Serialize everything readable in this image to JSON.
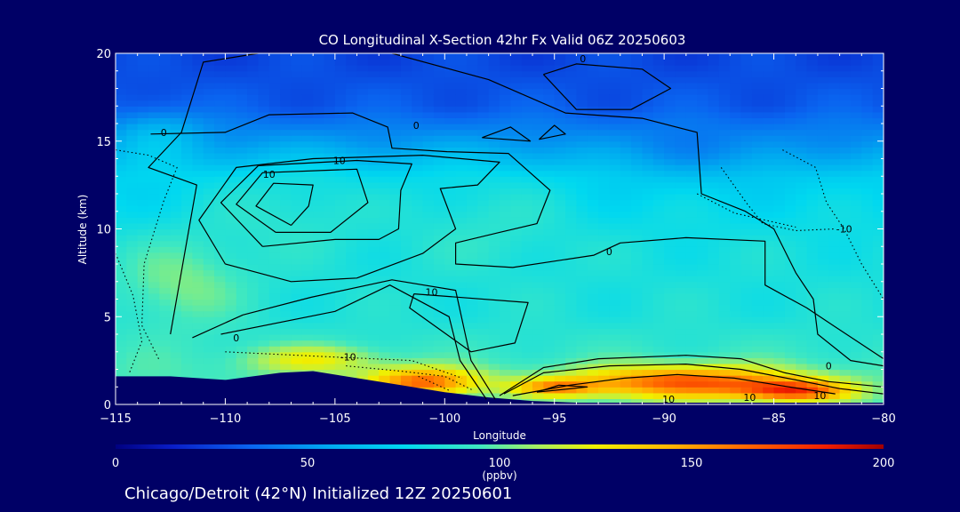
{
  "chart_data": {
    "type": "heatmap",
    "title": "CO Longitudinal X-Section 42hr  Fx Valid 06Z 20250603",
    "xlabel": "Longitude",
    "ylabel": "Altitude (km)",
    "xlim": [
      -115,
      -80
    ],
    "ylim": [
      0,
      20
    ],
    "x_ticks": [
      "−115",
      "−110",
      "−105",
      "−100",
      "−95",
      "−90",
      "−85",
      "−80"
    ],
    "y_ticks": [
      "0",
      "5",
      "10",
      "15",
      "20"
    ],
    "colorbar": {
      "ticks": [
        "0",
        "50",
        "100",
        "150",
        "200"
      ],
      "range": [
        0,
        200
      ],
      "unit_label": "(ppbv)",
      "stops": [
        {
          "v": 0,
          "c": "#000080"
        },
        {
          "v": 15,
          "c": "#0a1ec8"
        },
        {
          "v": 35,
          "c": "#0a64f0"
        },
        {
          "v": 55,
          "c": "#00a8f0"
        },
        {
          "v": 75,
          "c": "#00d8f0"
        },
        {
          "v": 95,
          "c": "#40e8c0"
        },
        {
          "v": 110,
          "c": "#a8f060"
        },
        {
          "v": 125,
          "c": "#f0f000"
        },
        {
          "v": 145,
          "c": "#ffb400"
        },
        {
          "v": 165,
          "c": "#ff6400"
        },
        {
          "v": 185,
          "c": "#f01e00"
        },
        {
          "v": 200,
          "c": "#a00000"
        }
      ]
    },
    "field_profile": [
      {
        "alt": 0,
        "co": 95
      },
      {
        "alt": 2,
        "co": 95
      },
      {
        "alt": 5,
        "co": 85
      },
      {
        "alt": 9,
        "co": 82
      },
      {
        "alt": 13,
        "co": 72
      },
      {
        "alt": 15,
        "co": 50
      },
      {
        "alt": 17,
        "co": 32
      },
      {
        "alt": 20,
        "co": 26
      }
    ],
    "field_anomalies": [
      {
        "lon": -107,
        "alt": 11.5,
        "dlon": 4,
        "dalt": 2.5,
        "dco": 12
      },
      {
        "lon": -98,
        "alt": 11,
        "dlon": 4,
        "dalt": 3,
        "dco": 10
      },
      {
        "lon": -112,
        "alt": 7,
        "dlon": 3,
        "dalt": 2.5,
        "dco": 20
      },
      {
        "lon": -113,
        "alt": 15.5,
        "dlon": 2,
        "dalt": 1.5,
        "dco": 18
      },
      {
        "lon": -88,
        "alt": 14,
        "dlon": 5,
        "dalt": 1.5,
        "dco": -10
      },
      {
        "lon": -101,
        "alt": 1.3,
        "dlon": 2.5,
        "dalt": 0.8,
        "dco": 70
      },
      {
        "lon": -89,
        "alt": 1.3,
        "dlon": 5,
        "dalt": 0.9,
        "dco": 75
      },
      {
        "lon": -84,
        "alt": 0.8,
        "dlon": 2.5,
        "dalt": 0.6,
        "dco": 70
      },
      {
        "lon": -95,
        "alt": 1.0,
        "dlon": 2,
        "dalt": 0.5,
        "dco": 50
      },
      {
        "lon": -106,
        "alt": 2.6,
        "dlon": 3,
        "dalt": 0.8,
        "dco": 30
      }
    ],
    "terrain": [
      [
        -115,
        1.6
      ],
      [
        -112.5,
        1.6
      ],
      [
        -110,
        1.4
      ],
      [
        -107.5,
        1.8
      ],
      [
        -106,
        1.9
      ],
      [
        -104,
        1.5
      ],
      [
        -102,
        1.1
      ],
      [
        -100,
        0.7
      ],
      [
        -98,
        0.4
      ],
      [
        -96,
        0.2
      ],
      [
        -94,
        0.1
      ],
      [
        -90,
        0.1
      ],
      [
        -85,
        0.1
      ],
      [
        -80,
        0.1
      ]
    ],
    "contours": [
      {
        "style": "solid",
        "points": [
          [
            -107,
            10.2
          ],
          [
            -108.6,
            11.3
          ],
          [
            -107.8,
            12.6
          ],
          [
            -106,
            12.5
          ],
          [
            -106.2,
            11.3
          ],
          [
            -107,
            10.2
          ]
        ]
      },
      {
        "style": "solid",
        "points": [
          [
            -107.7,
            9.8
          ],
          [
            -109.5,
            11.4
          ],
          [
            -108.3,
            13.2
          ],
          [
            -104,
            13.4
          ],
          [
            -103.5,
            11.5
          ],
          [
            -105.2,
            9.8
          ],
          [
            -107.7,
            9.8
          ]
        ]
      },
      {
        "style": "solid",
        "points": [
          [
            -108.3,
            9
          ],
          [
            -110.2,
            11.5
          ],
          [
            -108.5,
            13.6
          ],
          [
            -104,
            13.9
          ],
          [
            -101.5,
            13.7
          ],
          [
            -102,
            12.2
          ],
          [
            -102.1,
            10
          ],
          [
            -103,
            9.4
          ],
          [
            -105,
            9.4
          ],
          [
            -108.3,
            9
          ]
        ]
      },
      {
        "style": "solid",
        "points": [
          [
            -110,
            8
          ],
          [
            -111.2,
            10.5
          ],
          [
            -109.5,
            13.5
          ],
          [
            -106,
            14
          ],
          [
            -101,
            14.2
          ],
          [
            -97.5,
            13.8
          ],
          [
            -98.5,
            12.5
          ],
          [
            -100.2,
            12.3
          ],
          [
            -99.5,
            10
          ],
          [
            -101,
            8.6
          ],
          [
            -104,
            7.2
          ],
          [
            -107,
            7
          ],
          [
            -110,
            8
          ]
        ]
      },
      {
        "style": "solid",
        "points": [
          [
            -101.4,
            6.3
          ],
          [
            -96.2,
            5.8
          ],
          [
            -96.8,
            3.5
          ],
          [
            -98.8,
            3.0
          ],
          [
            -101.6,
            5.5
          ],
          [
            -101.4,
            6.3
          ]
        ]
      },
      {
        "style": "solid",
        "points": [
          [
            -110.2,
            4.0
          ],
          [
            -105,
            5.3
          ],
          [
            -102.5,
            6.8
          ],
          [
            -99.8,
            5
          ],
          [
            -99.3,
            2.5
          ],
          [
            -98.1,
            0.3
          ]
        ]
      },
      {
        "style": "solid",
        "points": [
          [
            -111.5,
            3.8
          ],
          [
            -109.2,
            5.1
          ],
          [
            -106.1,
            6.1
          ],
          [
            -102.4,
            7.1
          ],
          [
            -99.5,
            6.5
          ],
          [
            -98.8,
            2.5
          ],
          [
            -97.7,
            0.3
          ]
        ]
      },
      {
        "style": "solid",
        "points": [
          [
            -113.4,
            15.4
          ],
          [
            -110,
            15.5
          ],
          [
            -108,
            16.5
          ],
          [
            -104.2,
            16.6
          ],
          [
            -102.6,
            15.8
          ],
          [
            -102.4,
            14.6
          ],
          [
            -99.9,
            14.4
          ],
          [
            -97.1,
            14.3
          ],
          [
            -95.2,
            12.2
          ],
          [
            -95.8,
            10.3
          ],
          [
            -97.5,
            9.8
          ],
          [
            -99.5,
            9.2
          ],
          [
            -99.5,
            8.0
          ],
          [
            -96.9,
            7.8
          ],
          [
            -93.2,
            8.5
          ],
          [
            -92,
            9.2
          ],
          [
            -89,
            9.5
          ],
          [
            -85.4,
            9.3
          ],
          [
            -85.4,
            6.8
          ],
          [
            -83.5,
            5.5
          ],
          [
            -82.3,
            4.5
          ],
          [
            -80,
            2.6
          ]
        ]
      },
      {
        "style": "solid",
        "points": [
          [
            -112.5,
            4.0
          ],
          [
            -111.3,
            12.5
          ],
          [
            -113.5,
            13.5
          ],
          [
            -112,
            15.5
          ],
          [
            -111,
            19.5
          ],
          [
            -108.5,
            20
          ]
        ]
      },
      {
        "style": "solid",
        "points": [
          [
            -102.4,
            20
          ],
          [
            -98,
            18.5
          ],
          [
            -94.5,
            16.6
          ],
          [
            -91,
            16.3
          ],
          [
            -88.5,
            15.5
          ],
          [
            -88.3,
            12
          ],
          [
            -86.3,
            11
          ],
          [
            -85,
            10
          ],
          [
            -84,
            7.5
          ],
          [
            -83.2,
            6
          ],
          [
            -83,
            4
          ],
          [
            -81.5,
            2.5
          ],
          [
            -80,
            2.2
          ]
        ]
      },
      {
        "style": "solid",
        "points": [
          [
            -98.3,
            15.2
          ],
          [
            -96.1,
            15
          ],
          [
            -97,
            15.8
          ],
          [
            -98.3,
            15.2
          ]
        ]
      },
      {
        "style": "solid",
        "points": [
          [
            -95.7,
            15.1
          ],
          [
            -94.5,
            15.4
          ],
          [
            -95,
            15.9
          ],
          [
            -95.7,
            15.1
          ]
        ]
      },
      {
        "style": "solid",
        "points": [
          [
            -95.5,
            18.8
          ],
          [
            -94,
            19.4
          ],
          [
            -91,
            19.1
          ],
          [
            -89.7,
            18
          ],
          [
            -91.5,
            16.8
          ],
          [
            -94,
            16.8
          ],
          [
            -95.5,
            18.8
          ]
        ]
      },
      {
        "style": "solid",
        "points": [
          [
            -96.9,
            0.5
          ],
          [
            -94.3,
            1.1
          ],
          [
            -91.8,
            1.5
          ],
          [
            -89.4,
            1.7
          ],
          [
            -86.8,
            1.5
          ],
          [
            -84.3,
            1.0
          ],
          [
            -82.2,
            0.6
          ]
        ]
      },
      {
        "style": "solid",
        "points": [
          [
            -97.3,
            0.6
          ],
          [
            -95.5,
            1.8
          ],
          [
            -92.5,
            2.2
          ],
          [
            -89,
            2.3
          ],
          [
            -86.5,
            2.0
          ],
          [
            -84,
            1.4
          ],
          [
            -82,
            0.9
          ],
          [
            -80,
            0.6
          ]
        ]
      },
      {
        "style": "solid",
        "points": [
          [
            -97.5,
            0.5
          ],
          [
            -95.5,
            2.1
          ],
          [
            -93,
            2.6
          ],
          [
            -89,
            2.8
          ],
          [
            -86.5,
            2.6
          ],
          [
            -84.5,
            1.8
          ],
          [
            -82.5,
            1.3
          ],
          [
            -80,
            1.0
          ]
        ]
      },
      {
        "style": "solid",
        "points": [
          [
            -95.8,
            0.7
          ],
          [
            -94.8,
            1.1
          ],
          [
            -93.5,
            1.0
          ],
          [
            -95.8,
            0.7
          ]
        ]
      },
      {
        "style": "dotted",
        "points": [
          [
            -115,
            14.5
          ],
          [
            -113.5,
            14.2
          ],
          [
            -112.2,
            13.5
          ],
          [
            -112.8,
            11.6
          ],
          [
            -113.7,
            8
          ],
          [
            -113.8,
            4.5
          ],
          [
            -113,
            2.5
          ]
        ]
      },
      {
        "style": "dotted",
        "points": [
          [
            -110,
            3.0
          ],
          [
            -105,
            2.7
          ],
          [
            -101.5,
            2.5
          ],
          [
            -99.2,
            1.5
          ]
        ]
      },
      {
        "style": "dotted",
        "points": [
          [
            -104.5,
            2.2
          ],
          [
            -102,
            1.9
          ],
          [
            -100,
            1.6
          ],
          [
            -98.7,
            0.8
          ]
        ]
      },
      {
        "style": "dotted",
        "points": [
          [
            -84.6,
            14.5
          ],
          [
            -83.1,
            13.5
          ],
          [
            -82.6,
            11.5
          ],
          [
            -81.8,
            10
          ],
          [
            -81,
            8
          ],
          [
            -80,
            6
          ]
        ]
      },
      {
        "style": "dotted",
        "points": [
          [
            -87.4,
            13.5
          ],
          [
            -86.2,
            11.4
          ],
          [
            -85.5,
            10.3
          ],
          [
            -84,
            9.9
          ],
          [
            -82.2,
            10
          ]
        ]
      },
      {
        "style": "dotted",
        "points": [
          [
            -88.5,
            12
          ],
          [
            -86.8,
            10.9
          ],
          [
            -84,
            10.1
          ]
        ]
      },
      {
        "style": "dotted",
        "points": [
          [
            -101.2,
            1.6
          ],
          [
            -100.5,
            1.2
          ],
          [
            -99.8,
            0.8
          ]
        ]
      },
      {
        "style": "dotted",
        "points": [
          [
            -115,
            8.6
          ],
          [
            -114.2,
            6.2
          ],
          [
            -113.8,
            3.6
          ],
          [
            -114.4,
            1.7
          ]
        ]
      }
    ],
    "contour_labels": [
      {
        "text": "10",
        "lon": -108,
        "alt": 12.9
      },
      {
        "text": "10",
        "lon": -104.8,
        "alt": 13.7
      },
      {
        "text": "0",
        "lon": -112.8,
        "alt": 15.3
      },
      {
        "text": "0",
        "lon": -101.3,
        "alt": 15.7
      },
      {
        "text": "10",
        "lon": -100.6,
        "alt": 6.2
      },
      {
        "text": "0",
        "lon": -109.5,
        "alt": 3.6
      },
      {
        "text": "0",
        "lon": -92.5,
        "alt": 8.5
      },
      {
        "text": "-10",
        "lon": -104.4,
        "alt": 2.5
      },
      {
        "text": "0",
        "lon": -82.5,
        "alt": 2.0
      },
      {
        "text": "10",
        "lon": -89.8,
        "alt": 0.1
      },
      {
        "text": "10",
        "lon": -86.1,
        "alt": 0.2
      },
      {
        "text": "10",
        "lon": -82.9,
        "alt": 0.3
      },
      {
        "text": "-10",
        "lon": -81.8,
        "alt": 9.8
      },
      {
        "text": "0",
        "lon": -93.7,
        "alt": 19.5
      }
    ]
  },
  "footer": {
    "caption": "Chicago/Detroit (42°N) Initialized 12Z 20250601"
  }
}
